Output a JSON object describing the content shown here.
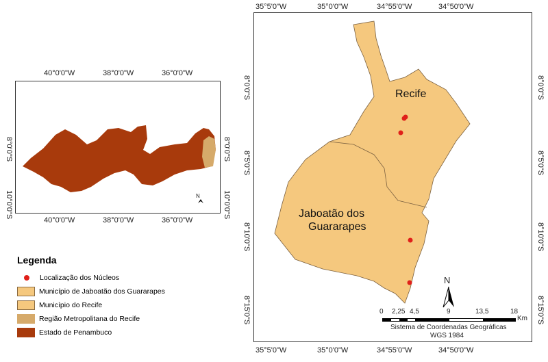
{
  "inset_map": {
    "top_ticks": [
      "40°0'0\"W",
      "38°0'0\"W",
      "36°0'0\"W"
    ],
    "bottom_ticks": [
      "40°0'0\"W",
      "38°0'0\"W",
      "36°0'0\"W"
    ],
    "left_ticks": [
      "8°0'0\"S",
      "10°0'0\"S"
    ],
    "right_ticks": [
      "8°0'0\"S",
      "10°0'0\"S"
    ],
    "north_label": "N"
  },
  "main_map": {
    "top_ticks": [
      "35°5'0\"W",
      "35°0'0\"W",
      "34°55'0\"W",
      "34°50'0\"W"
    ],
    "bottom_ticks": [
      "35°5'0\"W",
      "35°0'0\"W",
      "34°55'0\"W",
      "34°50'0\"W"
    ],
    "left_ticks": [
      "8°0'0\"S",
      "8°5'0\"S",
      "8°10'0\"S",
      "8°15'0\"S"
    ],
    "right_ticks": [
      "8°0'0\"S",
      "8°5'0\"S",
      "8°10'0\"S",
      "8°15'0\"S"
    ],
    "label_recife": "Recife",
    "label_jaboatao_1": "Jaboatão dos",
    "label_jaboatao_2": "Guararapes",
    "north_label": "N",
    "scale": {
      "ticks": [
        "0",
        "2,25",
        "4,5",
        "9",
        "13,5",
        "18"
      ],
      "unit": "Km"
    },
    "crs_line1": "Sistema de Coordenadas Geográficas",
    "crs_line2": "WGS 1984"
  },
  "legend": {
    "title": "Legenda",
    "items": [
      {
        "label": "Localização dos Núcleos",
        "color": "#e0201a"
      },
      {
        "label": "Município de Jaboatão dos Guararapes",
        "color": "#f5c87e"
      },
      {
        "label": "Município do Recife",
        "color": "#f5c87e"
      },
      {
        "label": "Região Metropolitana do Recife",
        "color": "#d6aa6a"
      },
      {
        "label": "Estado de Penambuco",
        "color": "#a83a0c"
      }
    ]
  },
  "colors": {
    "state": "#a83a0c",
    "rmr": "#d6aa6a",
    "municipality": "#f5c87e",
    "point": "#e0201a"
  }
}
